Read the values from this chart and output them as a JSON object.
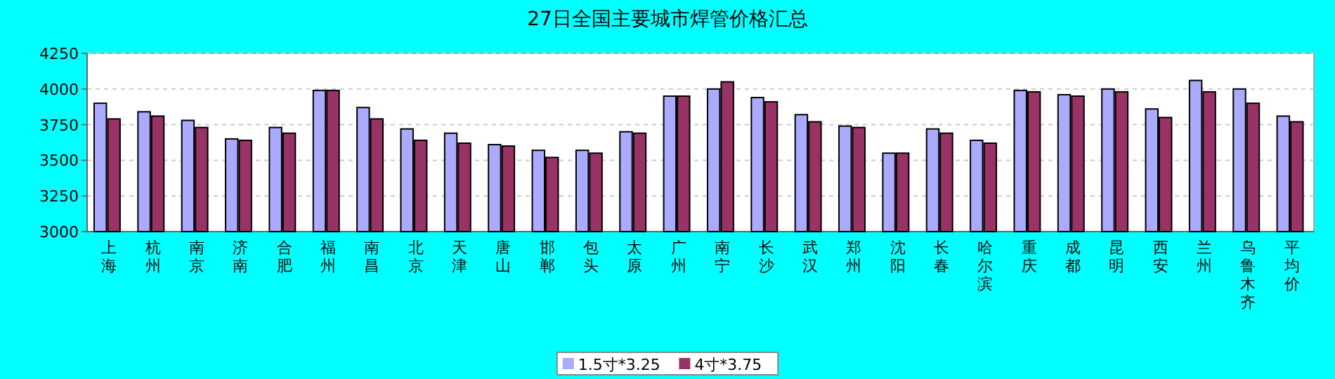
{
  "chart_data": {
    "type": "bar",
    "title": "27日全国主要城市焊管价格汇总",
    "categories": [
      "上海",
      "杭州",
      "南京",
      "济南",
      "合肥",
      "福州",
      "南昌",
      "北京",
      "天津",
      "唐山",
      "邯郸",
      "包头",
      "太原",
      "广州",
      "南宁",
      "长沙",
      "武汉",
      "郑州",
      "沈阳",
      "长春",
      "哈尔滨",
      "重庆",
      "成都",
      "昆明",
      "西安",
      "兰州",
      "乌鲁木齐",
      "平均价"
    ],
    "series": [
      {
        "name": "1.5寸*3.25",
        "color": "#aaaaff",
        "values": [
          3900,
          3840,
          3780,
          3650,
          3730,
          3990,
          3870,
          3720,
          3690,
          3610,
          3570,
          3570,
          3700,
          3950,
          4000,
          3940,
          3820,
          3740,
          3550,
          3720,
          3640,
          3990,
          3960,
          4000,
          3860,
          4060,
          4000,
          3810
        ]
      },
      {
        "name": "4寸*3.75",
        "color": "#993366",
        "values": [
          3790,
          3810,
          3730,
          3640,
          3690,
          3990,
          3790,
          3640,
          3620,
          3600,
          3520,
          3550,
          3690,
          3950,
          4050,
          3910,
          3770,
          3730,
          3550,
          3690,
          3620,
          3980,
          3950,
          3980,
          3800,
          3980,
          3900,
          3770
        ]
      }
    ],
    "ylim": [
      3000,
      4250
    ],
    "yticks": [
      3000,
      3250,
      3500,
      3750,
      4000,
      4250
    ],
    "grid": "y",
    "legend": "bottom"
  }
}
